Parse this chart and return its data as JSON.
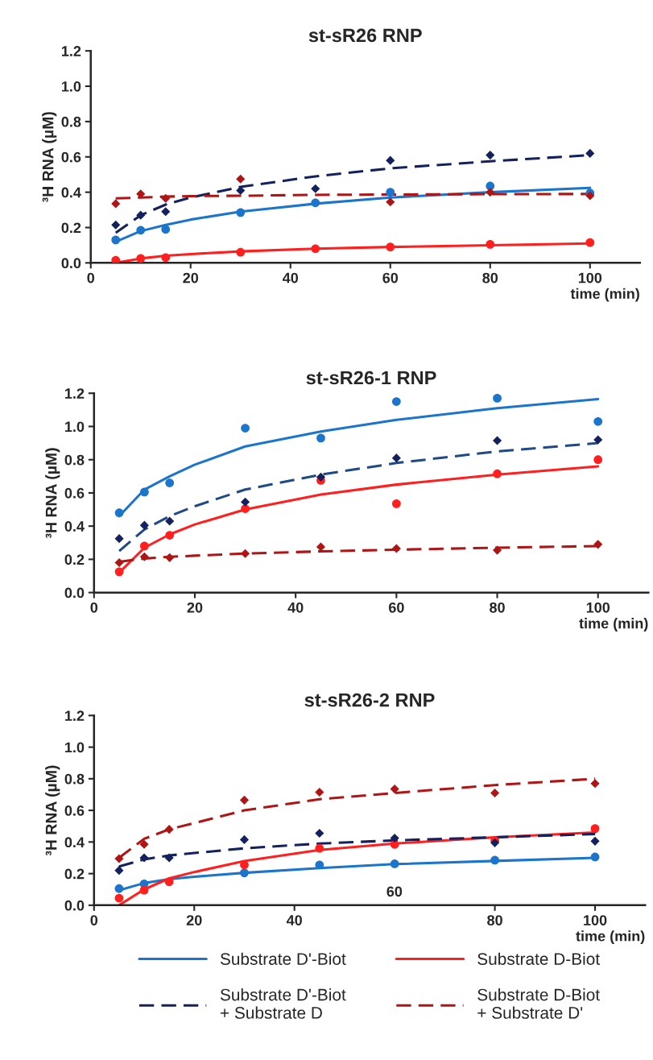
{
  "chart_data": [
    {
      "type": "line",
      "title": "st-sR26 RNP",
      "xlabel": "time (min)",
      "ylabel": "³H RNA (µM)",
      "xlim": [
        0,
        110
      ],
      "xticks": [
        0,
        20,
        40,
        60,
        80,
        100
      ],
      "ylim": [
        0,
        1.2
      ],
      "yticks": [
        {
          "value": 0,
          "label": "0.0"
        },
        {
          "value": 0.2,
          "label": "0.2"
        },
        {
          "value": 0.4,
          "label": "0.4"
        },
        {
          "value": 0.6,
          "label": "0.6"
        },
        {
          "value": 0.8,
          "label": "0.8"
        },
        {
          "value": 1.0,
          "label": "1.0"
        },
        {
          "value": 1.2,
          "label": "1.2"
        }
      ],
      "grid": false,
      "legend": false,
      "series": [
        {
          "type": "scatter",
          "marker": "circle",
          "color": "#1b75cc",
          "x": [
            5,
            10,
            15,
            30,
            45,
            60,
            80,
            100
          ],
          "values": [
            0.13,
            0.185,
            0.19,
            0.285,
            0.34,
            0.4,
            0.435,
            0.395
          ]
        },
        {
          "type": "scatter",
          "marker": "circle",
          "color": "#ff1f1f",
          "x": [
            5,
            10,
            15,
            30,
            45,
            60,
            80,
            100
          ],
          "values": [
            0.015,
            0.025,
            0.03,
            0.06,
            0.08,
            0.09,
            0.105,
            0.115
          ]
        },
        {
          "type": "scatter",
          "marker": "diamond",
          "color": "#13215e",
          "x": [
            5,
            10,
            15,
            30,
            45,
            60,
            80,
            100
          ],
          "values": [
            0.215,
            0.27,
            0.29,
            0.41,
            0.42,
            0.58,
            0.61,
            0.62
          ]
        },
        {
          "type": "scatter",
          "marker": "diamond",
          "color": "#b01515",
          "x": [
            5,
            10,
            15,
            30,
            45,
            60,
            80,
            100
          ],
          "values": [
            0.335,
            0.39,
            0.365,
            0.475,
            null,
            0.345,
            0.4,
            0.38
          ]
        },
        {
          "line_style": "solid",
          "color": "#1b75cc",
          "x": [
            5,
            10,
            15,
            20,
            30,
            45,
            60,
            80,
            100
          ],
          "values": [
            0.12,
            0.18,
            0.215,
            0.245,
            0.29,
            0.335,
            0.37,
            0.4,
            0.425
          ]
        },
        {
          "line_style": "solid",
          "color": "#ff1f1f",
          "x": [
            5,
            10,
            15,
            20,
            30,
            45,
            60,
            80,
            100
          ],
          "values": [
            0.0,
            0.025,
            0.04,
            0.05,
            0.065,
            0.08,
            0.09,
            0.1,
            0.11
          ]
        },
        {
          "line_style": "dashed",
          "color": "#13215e",
          "x": [
            5,
            10,
            15,
            20,
            30,
            45,
            60,
            80,
            100
          ],
          "values": [
            0.17,
            0.27,
            0.33,
            0.37,
            0.43,
            0.49,
            0.535,
            0.575,
            0.61
          ]
        },
        {
          "line_style": "dashed",
          "color": "#b01515",
          "x": [
            5,
            10,
            15,
            20,
            30,
            45,
            60,
            80,
            100
          ],
          "values": [
            0.365,
            0.37,
            0.375,
            0.378,
            0.38,
            0.385,
            0.387,
            0.389,
            0.39
          ]
        }
      ]
    },
    {
      "type": "line",
      "title": "st-sR26-1 RNP",
      "xlabel": "time (min)",
      "ylabel": "³H RNA (µM)",
      "xlim": [
        0,
        110
      ],
      "xticks": [
        0,
        20,
        40,
        60,
        80,
        100
      ],
      "ylim": [
        0,
        1.2
      ],
      "yticks": [
        {
          "value": 0,
          "label": "0.0"
        },
        {
          "value": 0.2,
          "label": "0.2"
        },
        {
          "value": 0.4,
          "label": "0.4"
        },
        {
          "value": 0.6,
          "label": "0.6"
        },
        {
          "value": 0.8,
          "label": "0.8"
        },
        {
          "value": 1.0,
          "label": "1.0"
        },
        {
          "value": 1.2,
          "label": "1.2"
        }
      ],
      "grid": false,
      "legend": false,
      "series": [
        {
          "type": "scatter",
          "marker": "circle",
          "color": "#1b75cc",
          "x": [
            5,
            10,
            15,
            30,
            45,
            60,
            80,
            100
          ],
          "values": [
            0.48,
            0.605,
            0.66,
            0.99,
            0.93,
            1.15,
            1.17,
            1.03
          ]
        },
        {
          "type": "scatter",
          "marker": "circle",
          "color": "#ff1f1f",
          "x": [
            5,
            10,
            15,
            30,
            45,
            60,
            80,
            100
          ],
          "values": [
            0.125,
            0.28,
            0.345,
            0.505,
            0.675,
            0.535,
            0.715,
            0.8
          ]
        },
        {
          "type": "scatter",
          "marker": "diamond",
          "color": "#13215e",
          "x": [
            5,
            10,
            15,
            30,
            45,
            60,
            80,
            100
          ],
          "values": [
            0.325,
            0.405,
            0.43,
            0.545,
            0.695,
            0.81,
            0.915,
            0.92
          ]
        },
        {
          "type": "scatter",
          "marker": "diamond",
          "color": "#b01515",
          "x": [
            5,
            10,
            15,
            30,
            45,
            60,
            80,
            100
          ],
          "values": [
            0.18,
            0.215,
            0.21,
            0.235,
            0.275,
            0.265,
            0.255,
            0.29
          ]
        },
        {
          "line_style": "solid",
          "color": "#1b75cc",
          "x": [
            5,
            10,
            15,
            20,
            30,
            45,
            60,
            80,
            100
          ],
          "values": [
            0.46,
            0.62,
            0.7,
            0.77,
            0.88,
            0.97,
            1.04,
            1.11,
            1.165
          ]
        },
        {
          "line_style": "solid",
          "color": "#ff1f1f",
          "x": [
            5,
            10,
            15,
            20,
            30,
            45,
            60,
            80,
            100
          ],
          "values": [
            0.12,
            0.27,
            0.35,
            0.41,
            0.5,
            0.59,
            0.65,
            0.71,
            0.76
          ]
        },
        {
          "line_style": "dashed",
          "color": "#1f4a85",
          "x": [
            5,
            10,
            15,
            20,
            30,
            45,
            60,
            80,
            100
          ],
          "values": [
            0.25,
            0.38,
            0.46,
            0.52,
            0.62,
            0.71,
            0.78,
            0.85,
            0.9
          ]
        },
        {
          "line_style": "dashed",
          "color": "#b01515",
          "x": [
            5,
            10,
            15,
            20,
            30,
            45,
            60,
            80,
            100
          ],
          "values": [
            0.185,
            0.205,
            0.215,
            0.222,
            0.235,
            0.248,
            0.258,
            0.27,
            0.28
          ]
        }
      ]
    },
    {
      "type": "line",
      "title": "st-sR26-2 RNP",
      "xlabel": "time (min)",
      "ylabel": "³H RNA (µM)",
      "xlim": [
        0,
        110
      ],
      "xticks": [
        0,
        20,
        40,
        80,
        100
      ],
      "ylim": [
        0,
        1.2
      ],
      "yticks": [
        {
          "value": 0,
          "label": "0.0"
        },
        {
          "value": 0.2,
          "label": "0.2"
        },
        {
          "value": 0.4,
          "label": "0.4"
        },
        {
          "value": 0.6,
          "label": "0.6"
        },
        {
          "value": 0.8,
          "label": "0.8"
        },
        {
          "value": 1.0,
          "label": "1.0"
        },
        {
          "value": 1.2,
          "label": "1.2"
        }
      ],
      "grid": false,
      "legend": "bottom",
      "annotations": [
        "60"
      ],
      "series": [
        {
          "type": "scatter",
          "marker": "circle",
          "color": "#1b75cc",
          "x": [
            5,
            10,
            15,
            30,
            45,
            60,
            80,
            100
          ],
          "values": [
            0.105,
            0.135,
            null,
            0.205,
            0.255,
            0.262,
            0.285,
            0.305
          ]
        },
        {
          "type": "scatter",
          "marker": "circle",
          "color": "#ff1f1f",
          "x": [
            5,
            10,
            15,
            30,
            45,
            60,
            80,
            100
          ],
          "values": [
            0.045,
            0.095,
            0.148,
            0.255,
            0.36,
            0.385,
            0.41,
            0.485
          ]
        },
        {
          "type": "scatter",
          "marker": "diamond",
          "color": "#13215e",
          "x": [
            5,
            10,
            15,
            30,
            45,
            60,
            80,
            100
          ],
          "values": [
            0.22,
            0.3,
            0.3,
            0.415,
            0.455,
            0.425,
            0.395,
            0.405
          ]
        },
        {
          "type": "scatter",
          "marker": "diamond",
          "color": "#b01515",
          "x": [
            5,
            10,
            15,
            30,
            45,
            60,
            80,
            100
          ],
          "values": [
            0.295,
            0.385,
            0.48,
            0.665,
            0.715,
            0.735,
            0.71,
            0.77
          ]
        },
        {
          "line_style": "solid",
          "name": "Substrate D'-Biot",
          "color": "#1b75cc",
          "x": [
            5,
            10,
            15,
            20,
            30,
            45,
            60,
            80,
            100
          ],
          "values": [
            0.095,
            0.14,
            0.165,
            0.18,
            0.205,
            0.235,
            0.26,
            0.28,
            0.3
          ]
        },
        {
          "line_style": "solid",
          "name": "Substrate D-Biot",
          "color": "#ff1f1f",
          "x": [
            5,
            10,
            15,
            20,
            30,
            45,
            60,
            80,
            100
          ],
          "values": [
            0.0,
            0.1,
            0.17,
            0.21,
            0.28,
            0.35,
            0.39,
            0.43,
            0.46
          ]
        },
        {
          "line_style": "dashed",
          "name": "Substrate D'-Biot\n+ Substrate D",
          "color": "#13215e",
          "x": [
            5,
            10,
            15,
            20,
            30,
            45,
            60,
            80,
            100
          ],
          "values": [
            0.245,
            0.29,
            0.315,
            0.33,
            0.36,
            0.39,
            0.41,
            0.43,
            0.45
          ]
        },
        {
          "line_style": "dashed",
          "name": "Substrate D-Biot\n+ Substrate D'",
          "color": "#b01515",
          "x": [
            5,
            10,
            15,
            20,
            30,
            45,
            60,
            80,
            100
          ],
          "values": [
            0.3,
            0.42,
            0.48,
            0.52,
            0.6,
            0.67,
            0.71,
            0.76,
            0.8
          ]
        }
      ]
    }
  ]
}
